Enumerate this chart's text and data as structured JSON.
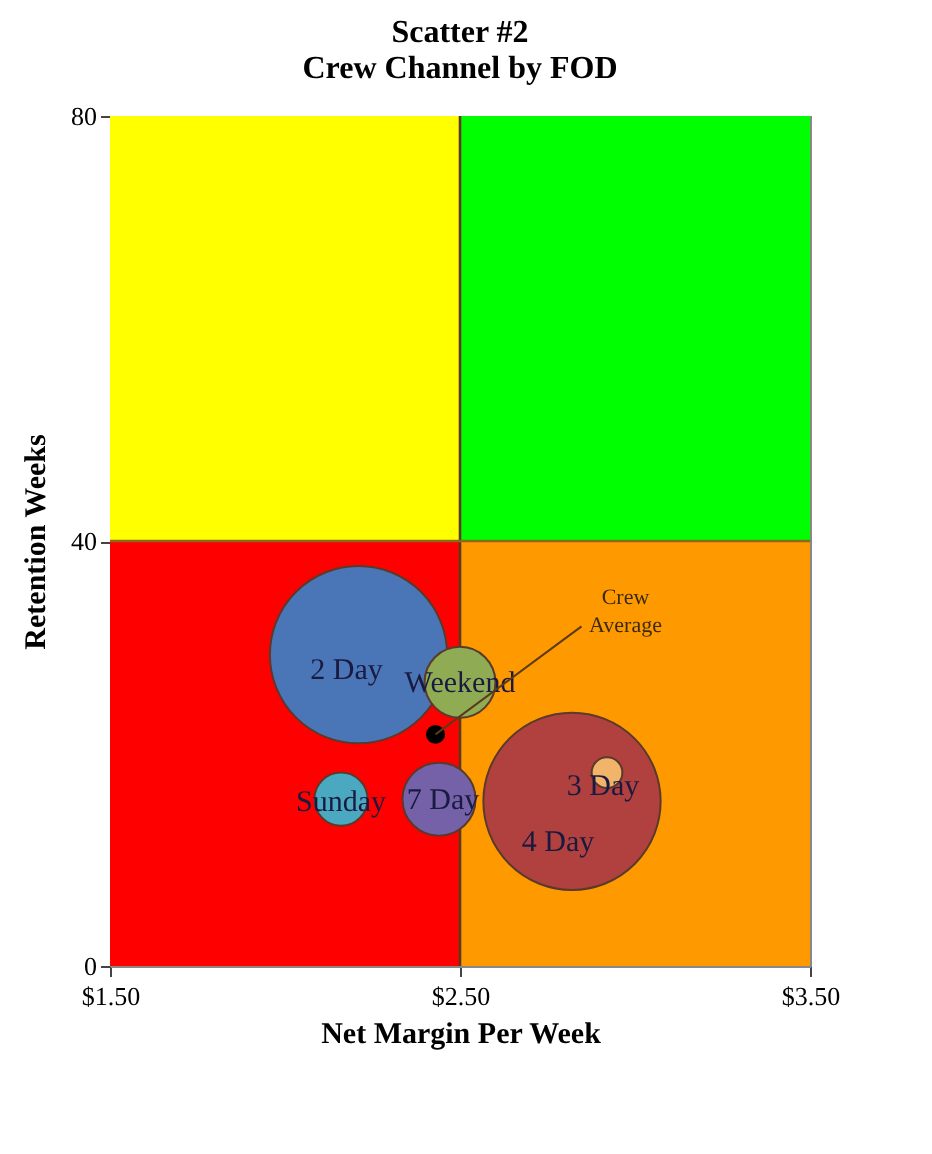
{
  "chart_data": {
    "type": "bubble",
    "title": [
      "Scatter #2",
      "Crew Channel by FOD"
    ],
    "xlabel": "Net Margin Per Week",
    "ylabel": "Retention Weeks",
    "xlim": [
      1.5,
      3.5
    ],
    "xticks": [
      {
        "value": 1.5,
        "label": "$1.50"
      },
      {
        "value": 2.5,
        "label": "$2.50"
      },
      {
        "value": 3.5,
        "label": "$3.50"
      }
    ],
    "ylim": [
      0,
      80
    ],
    "yticks": [
      0,
      40,
      80
    ],
    "grid": false,
    "marker": "circle",
    "ref_lines": [
      {
        "axis": "x",
        "value": 2.5,
        "color": "#5a3a1a"
      },
      {
        "axis": "y",
        "value": 40,
        "color": "#8a6a1a"
      }
    ],
    "series": [
      {
        "name": "2 Day",
        "color": "#4a76b8",
        "x": [
          2.21
        ],
        "values": [
          29.3
        ],
        "sizes": [
          1
        ]
      },
      {
        "name": "Weekend",
        "color": "#8fac54",
        "x": [
          2.5
        ],
        "values": [
          26.7
        ],
        "sizes": [
          0.16
        ]
      },
      {
        "name": "Sunday",
        "color": "#4aa9c0",
        "x": [
          2.16
        ],
        "values": [
          15.7
        ],
        "sizes": [
          0.09
        ]
      },
      {
        "name": "7 Day",
        "color": "#7461a8",
        "x": [
          2.44
        ],
        "values": [
          15.7
        ],
        "sizes": [
          0.17
        ]
      },
      {
        "name": "4 Day",
        "color": "#b0413f",
        "x": [
          2.82
        ],
        "values": [
          15.5
        ],
        "sizes": [
          1
        ]
      },
      {
        "name": "3 Day",
        "color": "#f2b46a",
        "x": [
          2.92
        ],
        "values": [
          18.2
        ],
        "sizes": [
          0.03
        ]
      },
      {
        "name": "Crew Average",
        "type": "scatter",
        "color": "#000000",
        "x": [
          2.43
        ],
        "values": [
          21.8
        ]
      }
    ]
  }
}
